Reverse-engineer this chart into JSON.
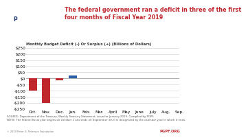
{
  "title": "The federal government ran a deficit in three of the first\nfour months of Fiscal Year 2019",
  "subtitle": "Monthly Budget Deficit (-) Or Surplus (+) (Billions of Dollars)",
  "months": [
    "Oct.",
    "Nov.",
    "Dec.",
    "Jan.",
    "Feb.",
    "Mar.",
    "April",
    "May",
    "June",
    "July",
    "Aug.",
    "Sep."
  ],
  "values": [
    -100,
    -202,
    -13,
    27,
    0,
    0,
    0,
    0,
    0,
    0,
    0,
    0
  ],
  "has_data": [
    true,
    true,
    true,
    true,
    false,
    false,
    false,
    false,
    false,
    false,
    false,
    false
  ],
  "bar_colors": [
    "#c0272d",
    "#c0272d",
    "#c0272d",
    "#2b5ea7",
    null,
    null,
    null,
    null,
    null,
    null,
    null,
    null
  ],
  "ylim": [
    -250,
    250
  ],
  "yticks": [
    -250,
    -200,
    -150,
    -100,
    -50,
    0,
    50,
    100,
    150,
    200,
    250
  ],
  "source_text": "SOURCE: Department of the Treasury, Weekly Treasury Statement, issue for January 2019. Compiled by PGPF.\nNOTE: The federal fiscal year begins on October 1 and ends on September 30; it is designated by the calendar year in which it ends.",
  "copyright_text": "© 2019 Peter G. Peterson Foundation",
  "pgpf_url": "PGPF.ORG",
  "title_color": "#c0272d",
  "subtitle_color": "#333333",
  "bar_color_red": "#c0272d",
  "bar_color_blue": "#2b5ea7",
  "background_color": "#ffffff",
  "grid_color": "#cccccc",
  "logo_bg": "#1e3a6e",
  "logo_text_color": "#ffffff"
}
